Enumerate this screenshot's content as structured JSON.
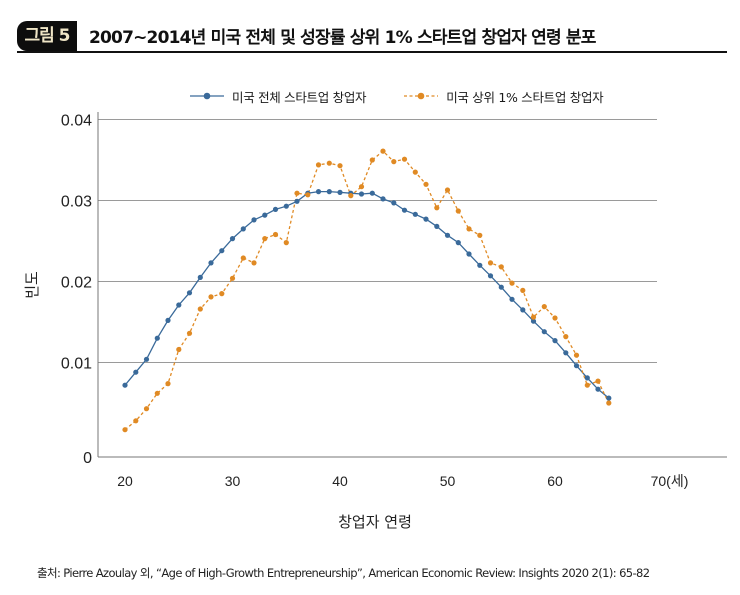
{
  "figure": {
    "badge": "그림 5",
    "title": "2007~2014년 미국 전체 및 성장률 상위 1% 스타트업 창업자 연령 분포"
  },
  "source": "출처: Pierre Azoulay 외, “Age of High-Growth Entrepreneurship”, American Economic Review: Insights 2020 2(1): 65-82",
  "chart_data": {
    "type": "line",
    "title": "2007~2014년 미국 전체 및 성장률 상위 1% 스타트업 창업자 연령 분포",
    "xlabel": "창업자 연령",
    "ylabel": "빈도",
    "xlim": [
      20,
      70
    ],
    "ylim": [
      0,
      0.04
    ],
    "xticks": [
      "20",
      "30",
      "40",
      "50",
      "60",
      "70(세)"
    ],
    "xtick_values": [
      20,
      30,
      40,
      50,
      60,
      70
    ],
    "yticks": [
      "0",
      "0.01",
      "0.02",
      "0.03",
      "0.04"
    ],
    "ytick_values": [
      0,
      0.01,
      0.02,
      0.03,
      0.04
    ],
    "grid": "horizontal",
    "legend_position": "top-center",
    "x": [
      20,
      21,
      22,
      23,
      24,
      25,
      26,
      27,
      28,
      29,
      30,
      31,
      32,
      33,
      34,
      35,
      36,
      37,
      38,
      39,
      40,
      41,
      42,
      43,
      44,
      45,
      46,
      47,
      48,
      49,
      50,
      51,
      52,
      53,
      54,
      55,
      56,
      57,
      58,
      59,
      60,
      61,
      62,
      63,
      64,
      65
    ],
    "series": [
      {
        "name": "미국 전체 스타트업 창업자",
        "color": "#3a6a9a",
        "style": "solid",
        "values": [
          0.0072,
          0.0088,
          0.0104,
          0.013,
          0.0152,
          0.0171,
          0.0186,
          0.0205,
          0.0223,
          0.0238,
          0.0253,
          0.0265,
          0.0276,
          0.0282,
          0.0289,
          0.0293,
          0.0299,
          0.0309,
          0.0311,
          0.0311,
          0.031,
          0.0309,
          0.0308,
          0.0309,
          0.0302,
          0.0297,
          0.0288,
          0.0283,
          0.0277,
          0.0268,
          0.0257,
          0.0248,
          0.0234,
          0.022,
          0.0207,
          0.0193,
          0.0178,
          0.0165,
          0.0151,
          0.0138,
          0.0127,
          0.0112,
          0.0096,
          0.0081,
          0.0067,
          0.0056
        ]
      },
      {
        "name": "미국 상위 1% 스타트업 창업자",
        "color": "#e08a24",
        "style": "dashed",
        "values": [
          0.0017,
          0.0028,
          0.0043,
          0.0062,
          0.0074,
          0.0116,
          0.0136,
          0.0166,
          0.0181,
          0.0185,
          0.0204,
          0.0229,
          0.0223,
          0.0253,
          0.0258,
          0.0248,
          0.0309,
          0.0307,
          0.0344,
          0.0346,
          0.0343,
          0.0306,
          0.0317,
          0.035,
          0.0361,
          0.0348,
          0.0351,
          0.0335,
          0.032,
          0.0291,
          0.0313,
          0.0287,
          0.0265,
          0.0257,
          0.0223,
          0.0218,
          0.0198,
          0.0189,
          0.0156,
          0.0169,
          0.0155,
          0.0132,
          0.0109,
          0.0072,
          0.0077,
          0.005
        ]
      }
    ]
  }
}
